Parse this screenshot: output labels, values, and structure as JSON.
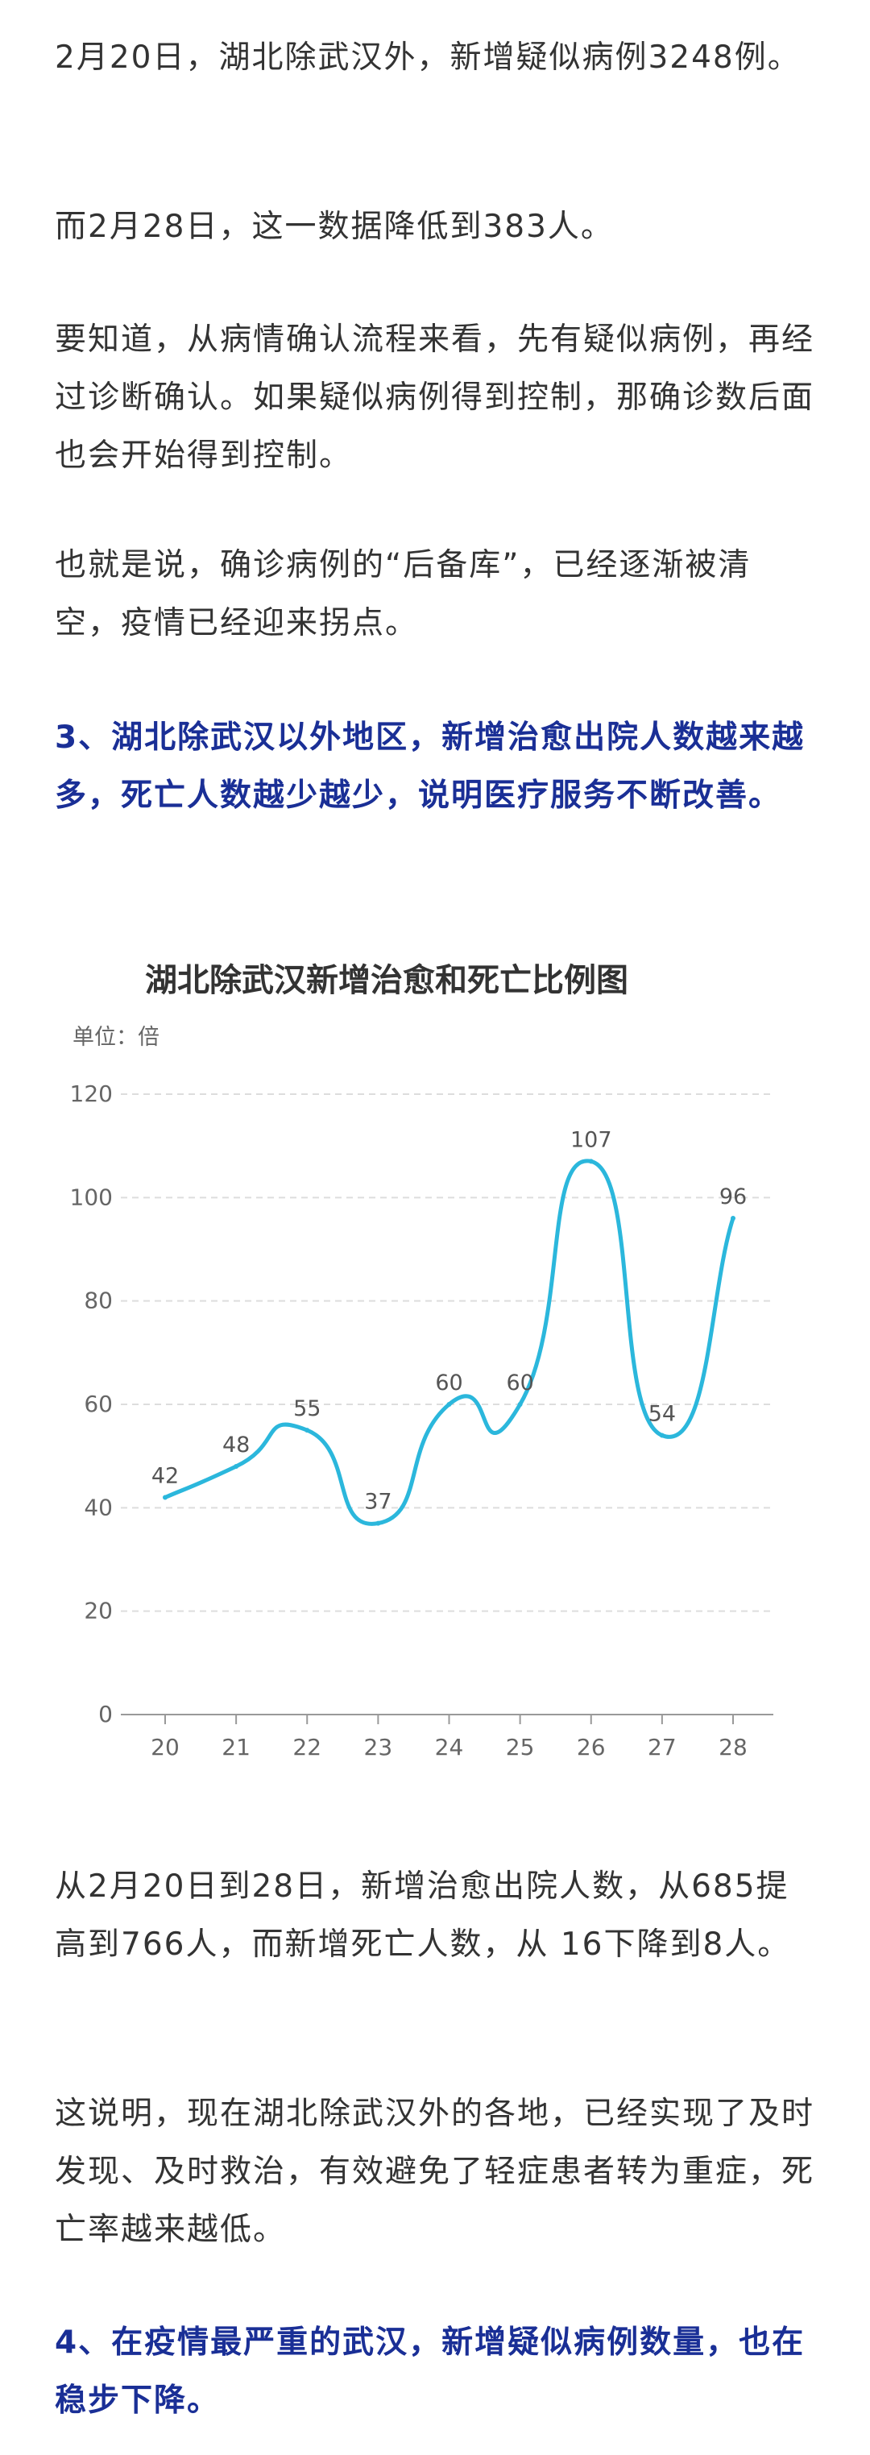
{
  "paragraphs": {
    "p1": "2月20日，湖北除武汉外，新增疑似病例3248例。",
    "p2": "而2月28日，这一数据降低到383人。",
    "p3": "要知道，从病情确认流程来看，先有疑似病例，再经过诊断确认。如果疑似病例得到控制，那确诊数后面也会开始得到控制。",
    "p4": "也就是说，确诊病例的“后备库”，已经逐渐被清空，疫情已经迎来拐点。",
    "h3": "3、湖北除武汉以外地区，新增治愈出院人数越来越多，死亡人数越少越少，说明医疗服务不断改善。",
    "p5": "从2月20日到28日，新增治愈出院人数，从685提高到766人，而新增死亡人数，从 16下降到8人。",
    "p6": "这说明，现在湖北除武汉外的各地，已经实现了及时发现、及时救治，有效避免了轻症患者转为重症，死亡率越来越低。",
    "h4": "4、在疫情最严重的武汉，新增疑似病例数量，也在稳步下降。"
  },
  "colors": {
    "text": "#333333",
    "heading": "#1a2f96",
    "line": "#2bb7dc",
    "grid": "#dddddd",
    "axis_text": "#666666"
  },
  "chart_data": {
    "type": "line",
    "title": "湖北除武汉新增治愈和死亡比例图",
    "unit_label": "单位：倍",
    "xlabel": "",
    "ylabel": "",
    "categories": [
      "20",
      "21",
      "22",
      "23",
      "24",
      "25",
      "26",
      "27",
      "28"
    ],
    "values": [
      42,
      48,
      55,
      37,
      60,
      60,
      107,
      54,
      96
    ],
    "data_labels": [
      "42",
      "48",
      "55",
      "37",
      "60",
      "60",
      "107",
      "54",
      "96"
    ],
    "ylim": [
      0,
      120
    ],
    "yticks": [
      "0",
      "20",
      "40",
      "60",
      "80",
      "100",
      "120"
    ],
    "smooth": true,
    "grid": "dashed horizontal"
  }
}
